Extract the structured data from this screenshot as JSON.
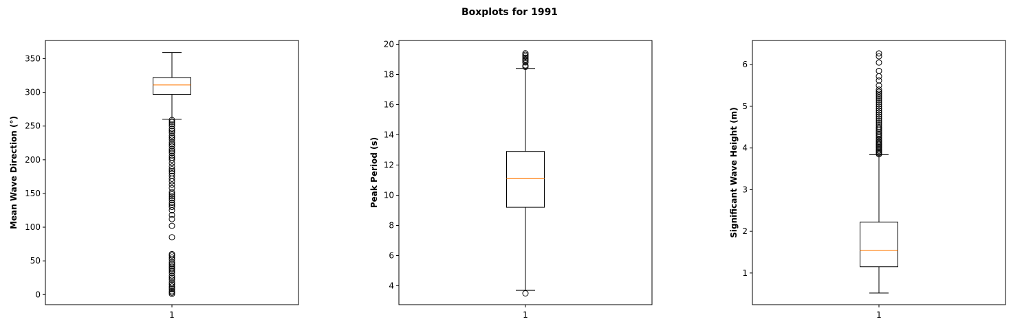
{
  "suptitle": "Boxplots for 1991",
  "chart_data": [
    {
      "type": "boxplot",
      "ylabel": "Mean Wave Direction (°)",
      "xlabel": "",
      "categories": [
        "1"
      ],
      "ylim": [
        -15,
        377
      ],
      "yticks": [
        0,
        50,
        100,
        150,
        200,
        250,
        300,
        350
      ],
      "box": {
        "whisker_low": 260,
        "q1": 297,
        "median": 311,
        "q3": 322,
        "whisker_high": 359
      },
      "outliers": [
        1,
        3,
        5,
        8,
        10,
        12,
        15,
        18,
        22,
        25,
        28,
        32,
        35,
        38,
        40,
        42,
        45,
        48,
        52,
        55,
        58,
        60,
        85,
        102,
        112,
        118,
        125,
        130,
        133,
        136,
        140,
        143,
        146,
        149,
        152,
        158,
        163,
        168,
        172,
        176,
        180,
        183,
        186,
        190,
        195,
        200,
        203,
        206,
        210,
        213,
        216,
        220,
        223,
        226,
        230,
        233,
        236,
        240,
        243,
        246,
        250,
        253,
        256,
        259
      ]
    },
    {
      "type": "boxplot",
      "ylabel": "Peak Period (s)",
      "xlabel": "",
      "categories": [
        "1"
      ],
      "ylim": [
        2.75,
        20.25
      ],
      "yticks": [
        4,
        6,
        8,
        10,
        12,
        14,
        16,
        18,
        20
      ],
      "box": {
        "whisker_low": 3.7,
        "q1": 9.2,
        "median": 11.1,
        "q3": 12.9,
        "whisker_high": 18.4
      },
      "outliers": [
        3.5,
        18.5,
        18.6,
        18.8,
        18.9,
        19.0,
        19.1,
        19.2,
        19.3,
        19.4
      ]
    },
    {
      "type": "boxplot",
      "ylabel": "Significant Wave Height (m)",
      "xlabel": "",
      "categories": [
        "1"
      ],
      "ylim": [
        0.24,
        6.58
      ],
      "yticks": [
        1,
        2,
        3,
        4,
        5,
        6
      ],
      "box": {
        "whisker_low": 0.52,
        "q1": 1.15,
        "median": 1.54,
        "q3": 2.22,
        "whisker_high": 3.84
      },
      "outliers": [
        3.85,
        3.88,
        3.91,
        3.94,
        3.97,
        4.0,
        4.03,
        4.06,
        4.09,
        4.12,
        4.15,
        4.19,
        4.22,
        4.26,
        4.3,
        4.34,
        4.38,
        4.42,
        4.46,
        4.5,
        4.55,
        4.6,
        4.65,
        4.7,
        4.75,
        4.8,
        4.85,
        4.9,
        4.95,
        5.0,
        5.05,
        5.1,
        5.15,
        5.2,
        5.25,
        5.3,
        5.35,
        5.4,
        5.5,
        5.62,
        5.72,
        5.85,
        6.05,
        6.2,
        6.27
      ]
    }
  ]
}
